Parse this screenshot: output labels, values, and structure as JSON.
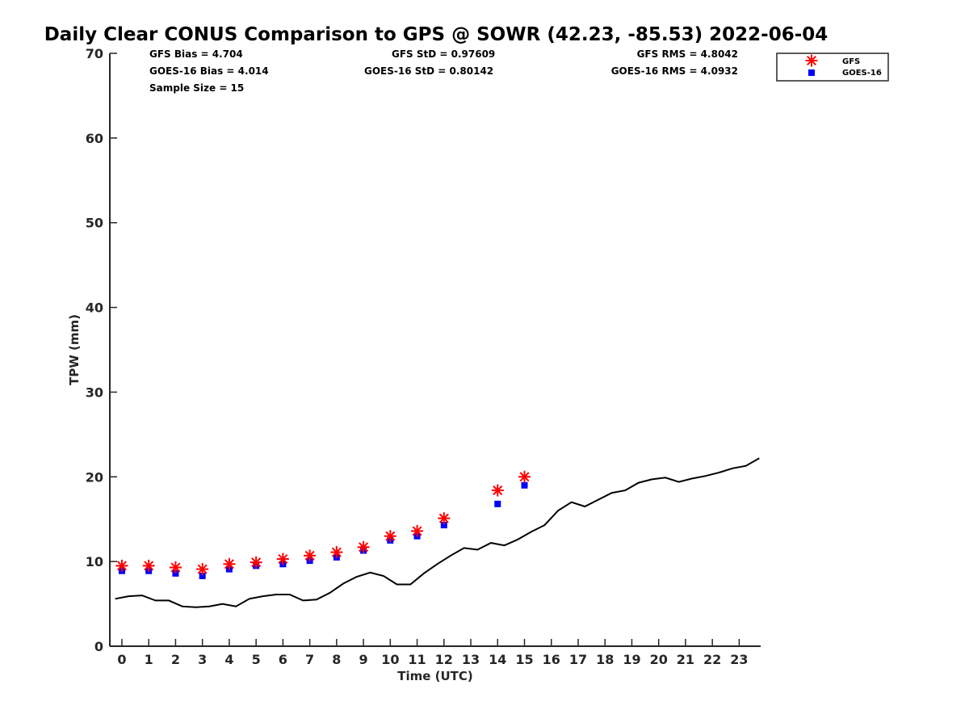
{
  "title": "Daily Clear CONUS Comparison to GPS @ SOWR (42.23, -85.53) 2022-06-04",
  "stats": {
    "gfs_bias": "GFS Bias = 4.704",
    "goes_bias": "GOES-16 Bias = 4.014",
    "sample_size": "Sample Size = 15",
    "gfs_std": "GFS StD = 0.97609",
    "goes_std": "GOES-16 StD = 0.80142",
    "gfs_rms": "GFS RMS = 4.8042",
    "goes_rms": "GOES-16 RMS = 4.0932"
  },
  "legend": {
    "gfs": "GFS",
    "goes": "GOES-16"
  },
  "colors": {
    "gfs": "#ff0000",
    "goes": "#0000ff",
    "gps": "#000000"
  },
  "chart_data": {
    "type": "line",
    "xlabel": "Time (UTC)",
    "ylabel": "TPW (mm)",
    "xlim": [
      -0.45,
      23.8
    ],
    "ylim": [
      0,
      70
    ],
    "xticks": [
      0,
      1,
      2,
      3,
      4,
      5,
      6,
      7,
      8,
      9,
      10,
      11,
      12,
      13,
      14,
      15,
      16,
      17,
      18,
      19,
      20,
      21,
      22,
      23
    ],
    "yticks": [
      0,
      10,
      20,
      30,
      40,
      50,
      60,
      70
    ],
    "series": [
      {
        "name": "GPS",
        "style": "line",
        "x": [
          -0.25,
          0.25,
          0.75,
          1.25,
          1.75,
          2.25,
          2.75,
          3.25,
          3.75,
          4.25,
          4.75,
          5.25,
          5.75,
          6.25,
          6.75,
          7.25,
          7.75,
          8.25,
          8.75,
          9.25,
          9.75,
          10.25,
          10.75,
          11.25,
          11.75,
          12.25,
          12.75,
          13.25,
          13.75,
          14.25,
          14.75,
          15.25,
          15.75,
          16.25,
          16.75,
          17.25,
          17.75,
          18.25,
          18.75,
          19.25,
          19.75,
          20.25,
          20.75,
          21.25,
          21.75,
          22.25,
          22.75,
          23.25,
          23.75
        ],
        "y": [
          5.6,
          5.9,
          6.0,
          5.4,
          5.4,
          4.7,
          4.6,
          4.7,
          5.0,
          4.7,
          5.6,
          5.9,
          6.1,
          6.1,
          5.4,
          5.5,
          6.3,
          7.4,
          8.2,
          8.7,
          8.3,
          7.3,
          7.3,
          8.6,
          9.7,
          10.7,
          11.6,
          11.4,
          12.2,
          11.9,
          12.6,
          13.5,
          14.3,
          16.0,
          17.0,
          16.5,
          17.3,
          18.1,
          18.4,
          19.3,
          19.7,
          19.9,
          19.4,
          19.8,
          20.1,
          20.5,
          21.0,
          21.3,
          22.2
        ]
      },
      {
        "name": "GFS",
        "style": "asterisk",
        "x": [
          0,
          1,
          2,
          3,
          4,
          5,
          6,
          7,
          8,
          9,
          10,
          11,
          12,
          14,
          15
        ],
        "y": [
          9.5,
          9.5,
          9.3,
          9.1,
          9.7,
          9.9,
          10.3,
          10.7,
          11.1,
          11.7,
          13.0,
          13.6,
          15.1,
          18.4,
          20.0
        ]
      },
      {
        "name": "GOES-16",
        "style": "square",
        "x": [
          0,
          1,
          2,
          3,
          4,
          5,
          6,
          7,
          8,
          9,
          10,
          11,
          12,
          14,
          15
        ],
        "y": [
          8.9,
          8.9,
          8.6,
          8.3,
          9.1,
          9.5,
          9.7,
          10.1,
          10.5,
          11.3,
          12.5,
          13.0,
          14.3,
          16.8,
          19.0
        ]
      }
    ]
  }
}
